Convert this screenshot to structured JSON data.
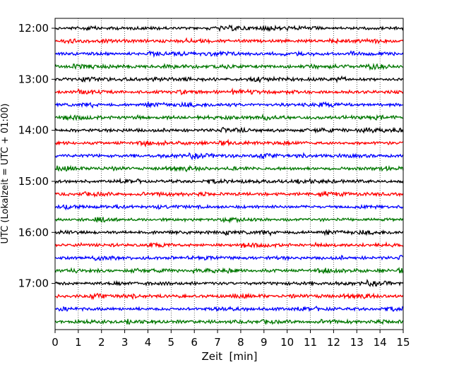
{
  "chart_data": {
    "type": "line",
    "chart_kind": "helicorder",
    "title": "",
    "xlabel": "Zeit  [min]",
    "ylabel": "UTC (Lokalzeit = UTC + 01:00)",
    "xlim": [
      0,
      15
    ],
    "x_ticks": [
      "0",
      "1",
      "2",
      "3",
      "4",
      "5",
      "6",
      "7",
      "8",
      "9",
      "10",
      "11",
      "12",
      "13",
      "14",
      "15"
    ],
    "y_ticks": [
      {
        "label": "12:00",
        "row": 0
      },
      {
        "label": "13:00",
        "row": 4
      },
      {
        "label": "14:00",
        "row": 8
      },
      {
        "label": "15:00",
        "row": 12
      },
      {
        "label": "16:00",
        "row": 16
      },
      {
        "label": "17:00",
        "row": 20
      }
    ],
    "row_interval_min": 15,
    "rows": 24,
    "series_colors": [
      "#000000",
      "#ff0000",
      "#0000ff",
      "#007700"
    ],
    "grid": {
      "vertical_dotted": true,
      "horizontal": false
    },
    "legend": "none"
  }
}
